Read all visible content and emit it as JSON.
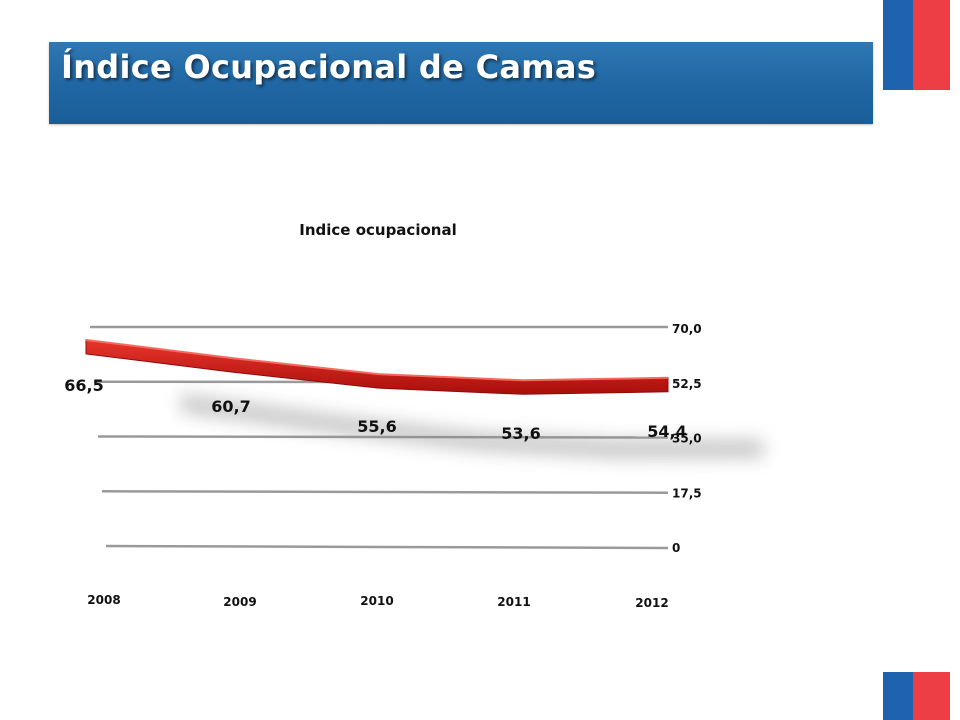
{
  "header": {
    "title": "Índice Ocupacional de Camas"
  },
  "colors": {
    "banner": "#1f66a3",
    "flag_blue": "#1d63ad",
    "flag_red": "#ee3e45",
    "series": "#c0140f"
  },
  "chart_data": {
    "type": "line",
    "title": "Indice ocupacional",
    "xlabel": "",
    "ylabel": "",
    "categories": [
      "2008",
      "2009",
      "2010",
      "2011",
      "2012"
    ],
    "series": [
      {
        "values": [
          66.5,
          60.7,
          55.6,
          53.6,
          54.4
        ]
      }
    ],
    "data_labels": [
      "66,5",
      "60,7",
      "55,6",
      "53,6",
      "54,4"
    ],
    "y_ticks": [
      0,
      17.5,
      35,
      52.5,
      70
    ],
    "y_tick_labels": [
      "0",
      "17,5",
      "35,0",
      "52,5",
      "70,0"
    ],
    "ylim": [
      0,
      70
    ],
    "grid": true,
    "style": "3d-ribbon"
  }
}
